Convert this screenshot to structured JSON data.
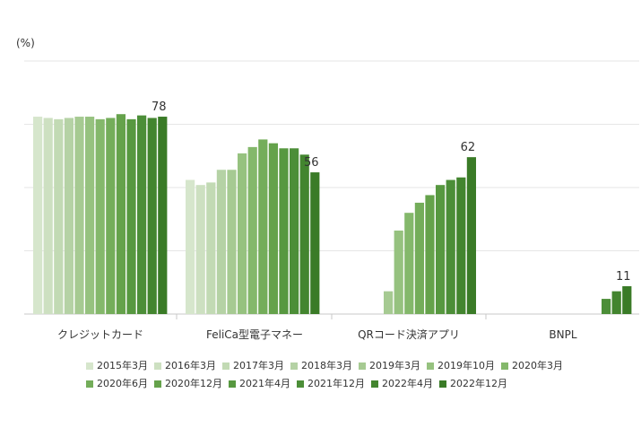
{
  "chart_data": {
    "type": "bar",
    "unit_label": "(%)",
    "categories": [
      "クレジットカード",
      "FeliCa型電子マネー",
      "QRコード決済アプリ",
      "BNPL"
    ],
    "ylim": [
      0,
      100
    ],
    "grid": true,
    "legend_position": "bottom",
    "series": [
      {
        "name": "2015年3月",
        "color": "#d6e6cc",
        "values": [
          78,
          53,
          null,
          null
        ]
      },
      {
        "name": "2016年3月",
        "color": "#cde0c1",
        "values": [
          77.5,
          51,
          null,
          null
        ]
      },
      {
        "name": "2017年3月",
        "color": "#c2dab4",
        "values": [
          77,
          52,
          null,
          null
        ]
      },
      {
        "name": "2018年3月",
        "color": "#b5d2a5",
        "values": [
          77.5,
          57,
          null,
          null
        ]
      },
      {
        "name": "2019年3月",
        "color": "#a6ca92",
        "values": [
          78,
          57,
          9,
          null
        ]
      },
      {
        "name": "2019年10月",
        "color": "#96c27f",
        "values": [
          78,
          63.5,
          33,
          null
        ]
      },
      {
        "name": "2020年3月",
        "color": "#84b86b",
        "values": [
          77,
          66,
          40,
          null
        ]
      },
      {
        "name": "2020年6月",
        "color": "#74ad5a",
        "values": [
          77.5,
          69,
          44,
          null
        ]
      },
      {
        "name": "2020年12月",
        "color": "#65a24b",
        "values": [
          79,
          67.5,
          47,
          null
        ]
      },
      {
        "name": "2021年4月",
        "color": "#579840",
        "values": [
          77,
          65.5,
          51,
          null
        ]
      },
      {
        "name": "2021年12月",
        "color": "#4c8e38",
        "values": [
          78.5,
          65.5,
          53,
          6
        ]
      },
      {
        "name": "2022年4月",
        "color": "#43852f",
        "values": [
          77.5,
          63,
          54,
          9
        ]
      },
      {
        "name": "2022年12月",
        "color": "#3a7b27",
        "values": [
          78,
          56,
          62,
          11
        ]
      }
    ],
    "data_labels": [
      {
        "category": "クレジットカード",
        "text": "78"
      },
      {
        "category": "FeliCa型電子マネー",
        "text": "56"
      },
      {
        "category": "QRコード決済アプリ",
        "text": "62"
      },
      {
        "category": "BNPL",
        "text": "11"
      }
    ]
  }
}
